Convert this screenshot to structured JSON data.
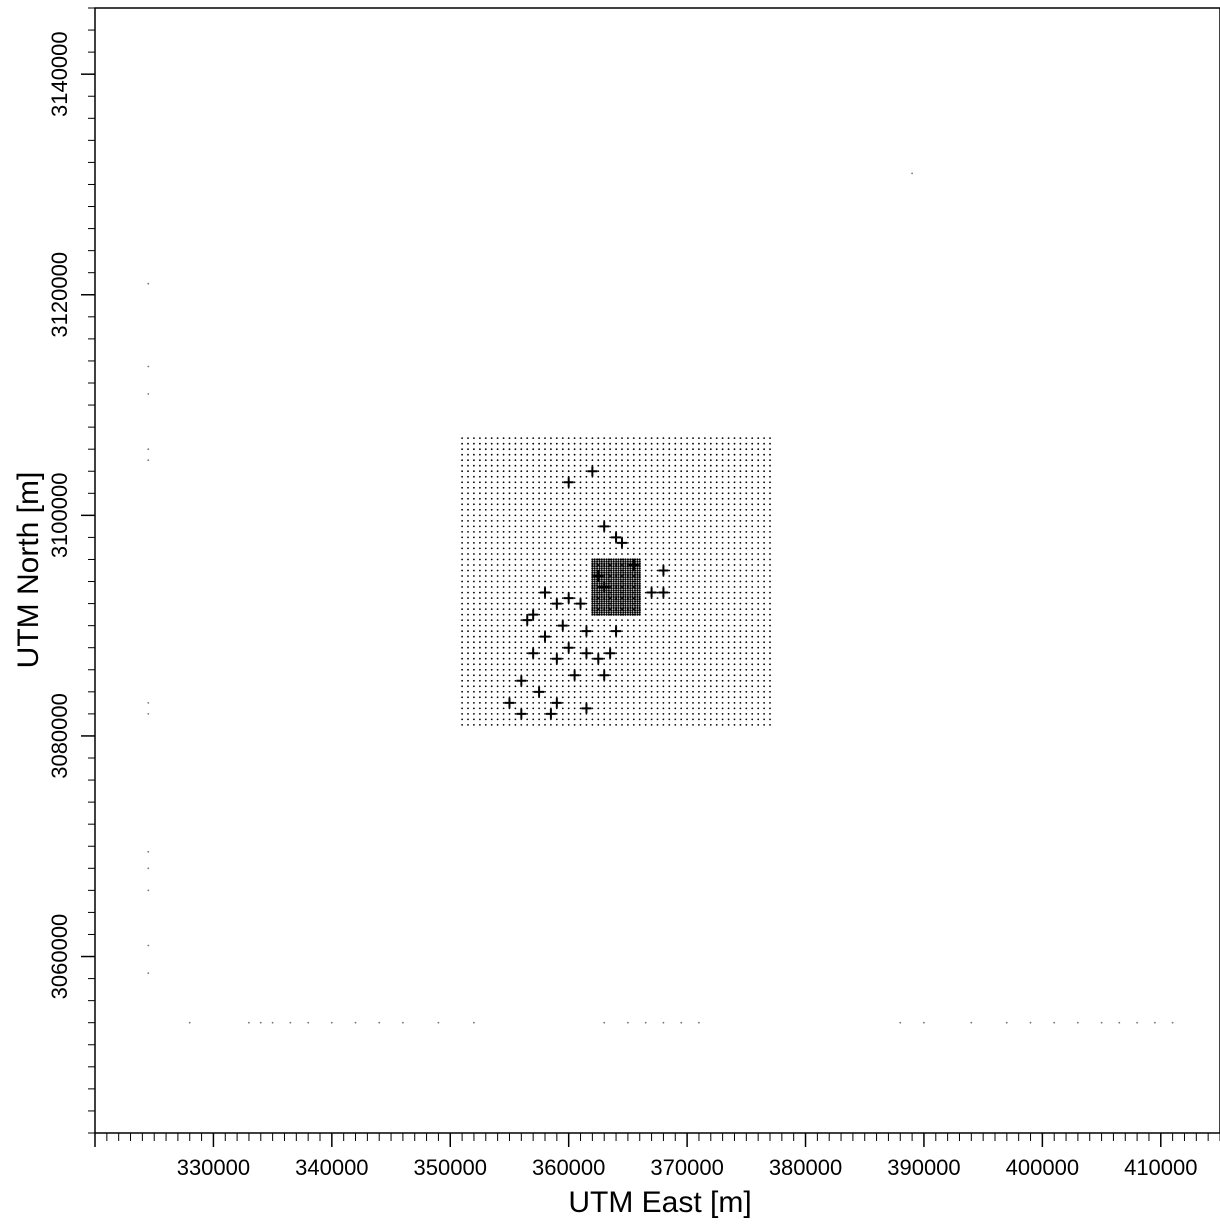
{
  "chart_data": {
    "type": "scatter",
    "title": "",
    "xlabel": "UTM East [m]",
    "ylabel": "UTM North [m]",
    "xlim": [
      320000,
      415000
    ],
    "ylim": [
      3044000,
      3146000
    ],
    "xticks": [
      "330000",
      "340000",
      "350000",
      "360000",
      "370000",
      "380000",
      "390000",
      "400000",
      "410000"
    ],
    "yticks": [
      "3060000",
      "3080000",
      "3100000",
      "3120000",
      "3140000"
    ],
    "grid": false,
    "legend": "none",
    "colors": {
      "points": "#000000",
      "axes": "#000000",
      "background": "#ffffff"
    },
    "series": [
      {
        "marker": "grid-dot",
        "x_range": [
          351000,
          377000
        ],
        "y_range": [
          3081000,
          3107000
        ],
        "spacing": 500
      },
      {
        "marker": "dense-grid-dot",
        "x_range": [
          362000,
          366000
        ],
        "y_range": [
          3091000,
          3096000
        ],
        "spacing": 200
      },
      {
        "marker": "plus",
        "points": [
          [
            360000,
            3103000
          ],
          [
            362000,
            3104000
          ],
          [
            363000,
            3099000
          ],
          [
            364000,
            3098000
          ],
          [
            364500,
            3097500
          ],
          [
            368000,
            3095000
          ],
          [
            368000,
            3093000
          ],
          [
            367000,
            3093000
          ],
          [
            360000,
            3092500
          ],
          [
            358000,
            3093000
          ],
          [
            361000,
            3092000
          ],
          [
            359000,
            3092000
          ],
          [
            357000,
            3091000
          ],
          [
            356500,
            3090500
          ],
          [
            359500,
            3090000
          ],
          [
            358000,
            3089000
          ],
          [
            361500,
            3089500
          ],
          [
            364000,
            3089500
          ],
          [
            360000,
            3088000
          ],
          [
            361500,
            3087500
          ],
          [
            362500,
            3087000
          ],
          [
            363500,
            3087500
          ],
          [
            359000,
            3087000
          ],
          [
            357000,
            3087500
          ],
          [
            363000,
            3085500
          ],
          [
            360500,
            3085500
          ],
          [
            356000,
            3085000
          ],
          [
            357500,
            3084000
          ],
          [
            355000,
            3083000
          ],
          [
            359000,
            3083000
          ],
          [
            361500,
            3082500
          ],
          [
            356000,
            3082000
          ],
          [
            358500,
            3082000
          ],
          [
            363000,
            3093500
          ],
          [
            365500,
            3095500
          ],
          [
            362500,
            3094500
          ]
        ]
      },
      {
        "marker": "faint-dot",
        "points": [
          [
            324500,
            3121000
          ],
          [
            324500,
            3113500
          ],
          [
            324500,
            3111000
          ],
          [
            324500,
            3106000
          ],
          [
            324500,
            3105000
          ],
          [
            324500,
            3083000
          ],
          [
            324500,
            3082000
          ],
          [
            324500,
            3069500
          ],
          [
            324500,
            3068000
          ],
          [
            324500,
            3066000
          ],
          [
            324500,
            3061000
          ],
          [
            324500,
            3058500
          ],
          [
            389000,
            3131000
          ],
          [
            328000,
            3054000
          ],
          [
            333000,
            3054000
          ],
          [
            334000,
            3054000
          ],
          [
            335000,
            3054000
          ],
          [
            336500,
            3054000
          ],
          [
            338000,
            3054000
          ],
          [
            340000,
            3054000
          ],
          [
            342000,
            3054000
          ],
          [
            344000,
            3054000
          ],
          [
            346000,
            3054000
          ],
          [
            349000,
            3054000
          ],
          [
            352000,
            3054000
          ],
          [
            363000,
            3054000
          ],
          [
            365000,
            3054000
          ],
          [
            366500,
            3054000
          ],
          [
            368000,
            3054000
          ],
          [
            369500,
            3054000
          ],
          [
            371000,
            3054000
          ],
          [
            388000,
            3054000
          ],
          [
            390000,
            3054000
          ],
          [
            394000,
            3054000
          ],
          [
            397000,
            3054000
          ],
          [
            399000,
            3054000
          ],
          [
            401000,
            3054000
          ],
          [
            403000,
            3054000
          ],
          [
            405000,
            3054000
          ],
          [
            406500,
            3054000
          ],
          [
            408000,
            3054000
          ],
          [
            409500,
            3054000
          ],
          [
            411000,
            3054000
          ]
        ]
      }
    ]
  }
}
